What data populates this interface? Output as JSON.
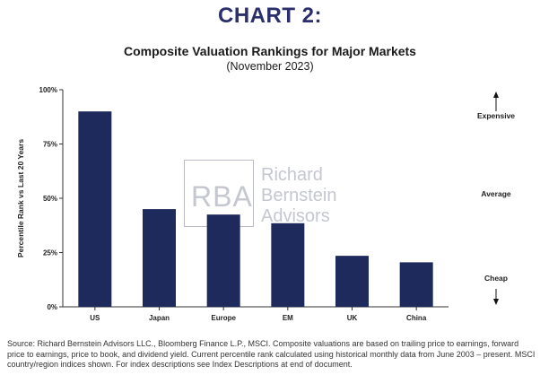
{
  "header": {
    "chart_label": "CHART 2:",
    "title": "Composite Valuation Rankings for Major Markets",
    "subtitle": "(November 2023)"
  },
  "watermark": {
    "logo_text": "RBA",
    "name_lines": [
      "Richard",
      "Bernstein",
      "Advisors"
    ]
  },
  "scale_labels": {
    "top": "Expensive",
    "middle": "Average",
    "bottom": "Cheap"
  },
  "footer": {
    "source": "Source:  Richard Bernstein Advisors LLC., Bloomberg Finance L.P., MSCI. Composite valuations are based on trailing price to earnings, forward price to earnings, price to book, and dividend yield. Current percentile rank calculated using historical monthly data from June 2003 – present. MSCI country/region indices shown. For index descriptions see Index Descriptions at end of document."
  },
  "colors": {
    "bar": "#1f2a5c",
    "title_accent": "#2b2f6b",
    "axis": "#333333"
  },
  "chart_data": {
    "type": "bar",
    "title": "Composite Valuation Rankings for Major Markets",
    "subtitle": "(November 2023)",
    "categories": [
      "US",
      "Japan",
      "Europe",
      "EM",
      "UK",
      "China"
    ],
    "values": [
      0.9,
      0.45,
      0.425,
      0.385,
      0.235,
      0.205
    ],
    "ylabel": "Percentile Rank vs Last 20 Years",
    "xlabel": "",
    "ylim": [
      0,
      1
    ],
    "yticks": [
      0,
      0.25,
      0.5,
      0.75,
      1.0
    ],
    "ytick_labels": [
      "0%",
      "25%",
      "50%",
      "75%",
      "100%"
    ],
    "grid": false,
    "legend": "none"
  }
}
